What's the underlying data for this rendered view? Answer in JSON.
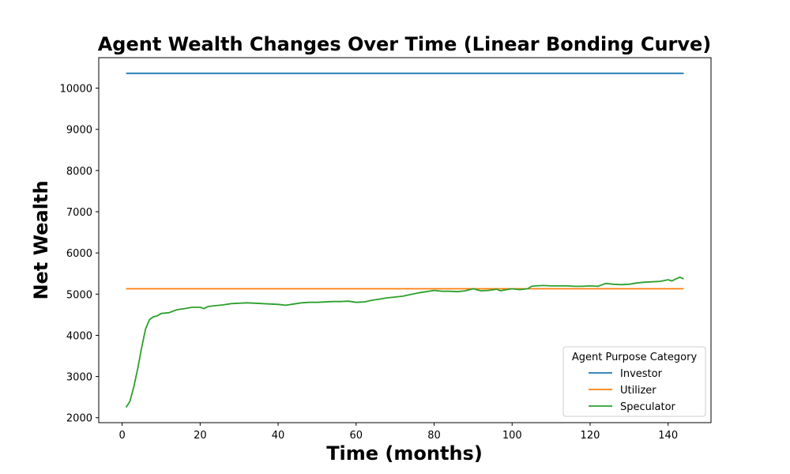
{
  "chart_data": {
    "type": "line",
    "title": "Agent Wealth Changes Over Time (Linear Bonding Curve)",
    "xlabel": "Time (months)",
    "ylabel": "Net Wealth",
    "xlim": [
      -6,
      151
    ],
    "ylim": [
      1880,
      10740
    ],
    "xticks": [
      0,
      20,
      40,
      60,
      80,
      100,
      120,
      140
    ],
    "yticks": [
      2000,
      3000,
      4000,
      5000,
      6000,
      7000,
      8000,
      9000,
      10000
    ],
    "grid": false,
    "legend": {
      "title": "Agent Purpose Category",
      "position": "lower right"
    },
    "series": [
      {
        "name": "Investor",
        "color": "#1f77b4",
        "x": [
          1,
          144
        ],
        "y": [
          10360,
          10360
        ]
      },
      {
        "name": "Utilizer",
        "color": "#ff7f0e",
        "x": [
          1,
          144
        ],
        "y": [
          5130,
          5130
        ]
      },
      {
        "name": "Speculator",
        "color": "#2ca02c",
        "x": [
          1,
          2,
          3,
          4,
          5,
          6,
          7,
          8,
          9,
          10,
          12,
          14,
          16,
          18,
          20,
          21,
          22,
          24,
          26,
          28,
          30,
          32,
          34,
          36,
          38,
          40,
          42,
          44,
          46,
          48,
          50,
          52,
          54,
          56,
          58,
          60,
          62,
          64,
          66,
          68,
          70,
          72,
          74,
          76,
          78,
          80,
          82,
          84,
          86,
          88,
          90,
          92,
          94,
          96,
          97,
          98,
          100,
          102,
          104,
          105,
          106,
          108,
          110,
          112,
          114,
          116,
          118,
          120,
          122,
          124,
          126,
          128,
          130,
          132,
          134,
          136,
          138,
          140,
          141,
          142,
          143,
          144
        ],
        "y": [
          2250,
          2400,
          2750,
          3200,
          3700,
          4150,
          4380,
          4450,
          4470,
          4530,
          4550,
          4620,
          4650,
          4680,
          4680,
          4650,
          4700,
          4720,
          4740,
          4770,
          4780,
          4790,
          4780,
          4770,
          4760,
          4750,
          4730,
          4760,
          4790,
          4800,
          4800,
          4810,
          4820,
          4820,
          4830,
          4800,
          4810,
          4850,
          4880,
          4910,
          4930,
          4950,
          4990,
          5030,
          5060,
          5090,
          5070,
          5070,
          5060,
          5080,
          5130,
          5080,
          5090,
          5120,
          5080,
          5100,
          5130,
          5110,
          5130,
          5190,
          5200,
          5210,
          5200,
          5200,
          5200,
          5190,
          5190,
          5200,
          5190,
          5260,
          5240,
          5230,
          5240,
          5270,
          5290,
          5300,
          5310,
          5350,
          5320,
          5370,
          5410,
          5370
        ]
      }
    ]
  }
}
